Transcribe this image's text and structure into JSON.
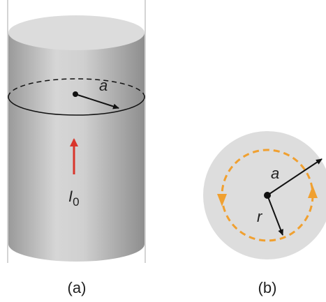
{
  "panels": [
    {
      "caption": "(a)",
      "labels": {
        "radius": "a",
        "current": "I",
        "current_subscript": "0"
      }
    },
    {
      "caption": "(b)",
      "labels": {
        "radius": "a",
        "distance": "r"
      }
    }
  ]
}
